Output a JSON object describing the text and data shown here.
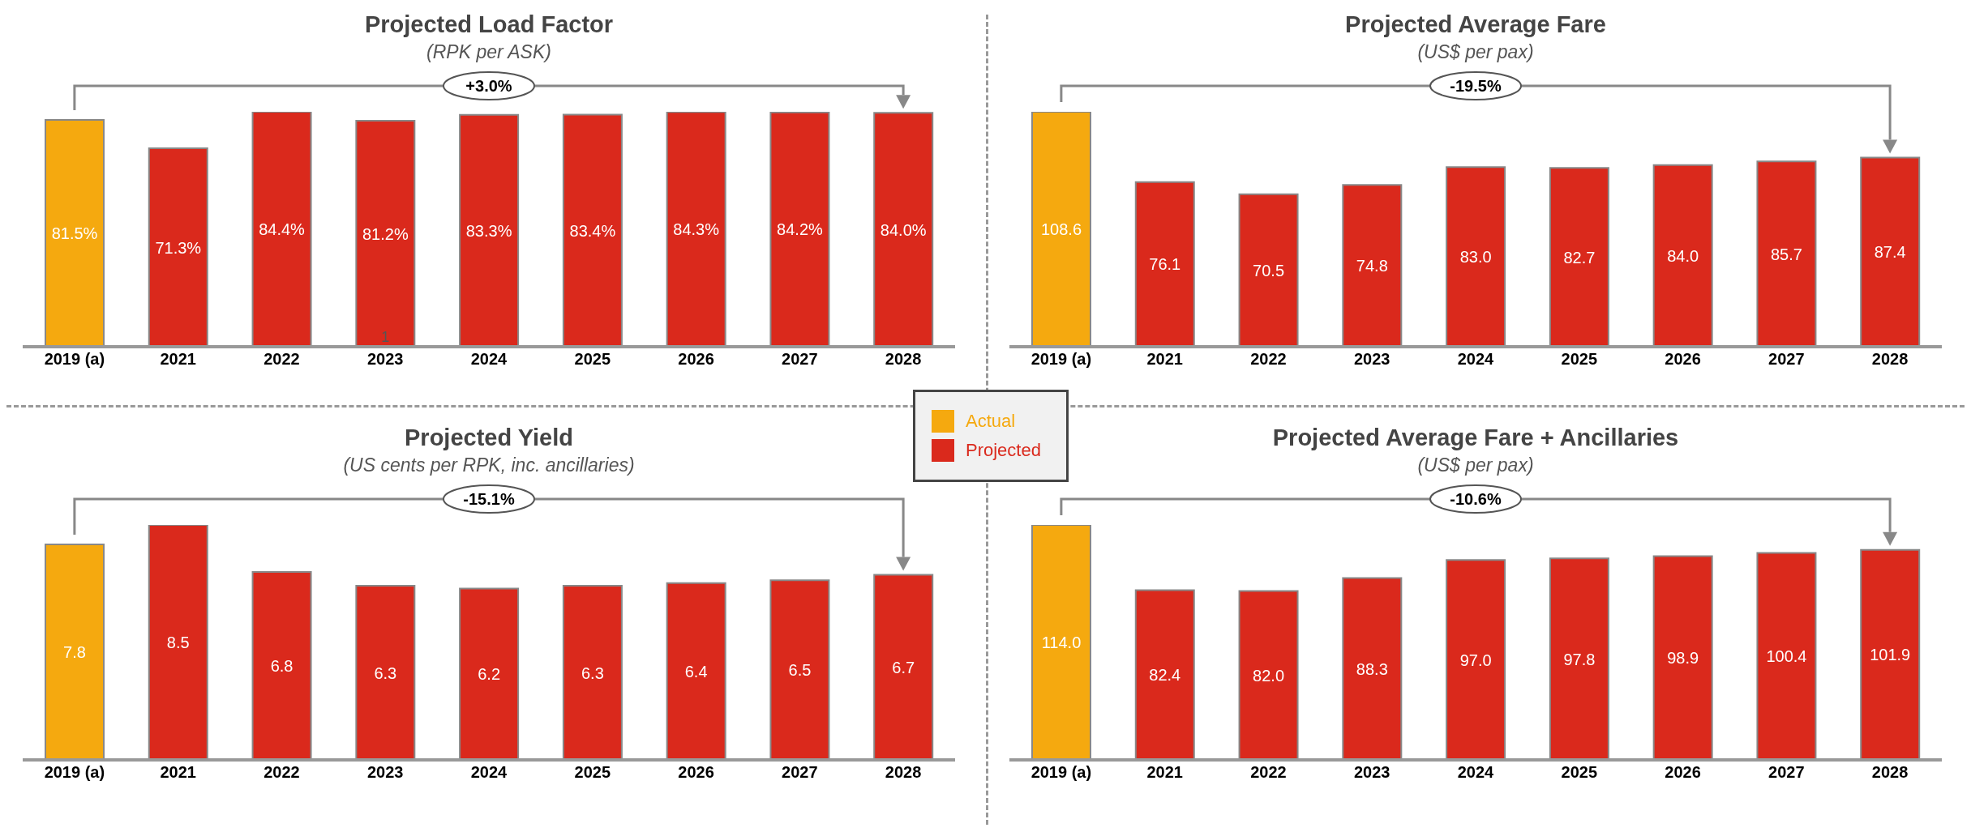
{
  "chart_data": [
    {
      "type": "bar",
      "title": "Projected Load Factor",
      "subtitle": "(RPK per ASK)",
      "categories": [
        "2019 (a)",
        "2021",
        "2022",
        "2023",
        "2024",
        "2025",
        "2026",
        "2027",
        "2028"
      ],
      "stacked": true,
      "legend": "bottom right",
      "series": [
        {
          "name": "Actual",
          "color": "#f5a90f",
          "values": [
            81.5,
            null,
            null,
            null,
            null,
            null,
            null,
            null,
            null
          ],
          "value_labels": [
            "81.5%",
            null,
            null,
            null,
            null,
            null,
            null,
            null,
            null
          ]
        },
        {
          "name": "Projected",
          "color": "#da291c",
          "values": [
            null,
            71.3,
            84.4,
            81.2,
            83.3,
            83.4,
            84.3,
            84.2,
            84.0
          ],
          "value_labels": [
            null,
            "71.3%",
            "84.4%",
            "81.2%",
            "83.3%",
            "83.4%",
            "84.3%",
            "84.2%",
            "84.0%"
          ]
        }
      ],
      "annotations": [
        "+3.0%",
        {
          "text": "1",
          "x": "2023",
          "y": 0
        }
      ]
    },
    {
      "type": "bar",
      "title": "Projected Average Fare",
      "subtitle": "(US$ per pax)",
      "categories": [
        "2019 (a)",
        "2021",
        "2022",
        "2023",
        "2024",
        "2025",
        "2026",
        "2027",
        "2028"
      ],
      "stacked": true,
      "series": [
        {
          "color": "#f5a90f",
          "values": [
            108.6,
            null,
            null,
            null,
            null,
            null,
            null,
            null,
            null
          ],
          "value_labels": [
            "108.6",
            null,
            null,
            null,
            null,
            null,
            null,
            null,
            null
          ]
        },
        {
          "color": "#da291c",
          "values": [
            null,
            76.1,
            70.5,
            74.8,
            83.0,
            82.7,
            84.0,
            85.7,
            87.4
          ],
          "value_labels": [
            null,
            "76.1",
            "70.5",
            "74.8",
            "83.0",
            "82.7",
            "84.0",
            "85.7",
            "87.4"
          ]
        }
      ],
      "annotations": [
        "-19.5%"
      ]
    },
    {
      "type": "bar",
      "title": "Projected Yield",
      "subtitle": "(US cents per RPK, inc. ancillaries)",
      "categories": [
        "2019 (a)",
        "2021",
        "2022",
        "2023",
        "2024",
        "2025",
        "2026",
        "2027",
        "2028"
      ],
      "stacked": true,
      "series": [
        {
          "color": "#f5a90f",
          "values": [
            7.8,
            null,
            null,
            null,
            null,
            null,
            null,
            null,
            null
          ],
          "value_labels": [
            "7.8",
            null,
            null,
            null,
            null,
            null,
            null,
            null,
            null
          ]
        },
        {
          "color": "#da291c",
          "values": [
            null,
            8.5,
            6.8,
            6.3,
            6.2,
            6.3,
            6.4,
            6.5,
            6.7
          ],
          "value_labels": [
            null,
            "8.5",
            "6.8",
            "6.3",
            "6.2",
            "6.3",
            "6.4",
            "6.5",
            "6.7"
          ]
        }
      ],
      "annotations": [
        "-15.1%"
      ]
    },
    {
      "type": "bar",
      "title": "Projected Average Fare + Ancillaries",
      "subtitle": "(US$ per pax)",
      "categories": [
        "2019 (a)",
        "2021",
        "2022",
        "2023",
        "2024",
        "2025",
        "2026",
        "2027",
        "2028"
      ],
      "stacked": true,
      "series": [
        {
          "color": "#f5a90f",
          "values": [
            114.0,
            null,
            null,
            null,
            null,
            null,
            null,
            null,
            null
          ],
          "value_labels": [
            "114.0",
            null,
            null,
            null,
            null,
            null,
            null,
            null,
            null
          ]
        },
        {
          "color": "#da291c",
          "values": [
            null,
            82.4,
            82.0,
            88.3,
            97.0,
            97.8,
            98.9,
            100.4,
            101.9
          ],
          "value_labels": [
            null,
            "82.4",
            "82.0",
            "88.3",
            "97.0",
            "97.8",
            "98.9",
            "100.4",
            "101.9"
          ]
        }
      ],
      "annotations": [
        "-10.6%"
      ]
    }
  ]
}
